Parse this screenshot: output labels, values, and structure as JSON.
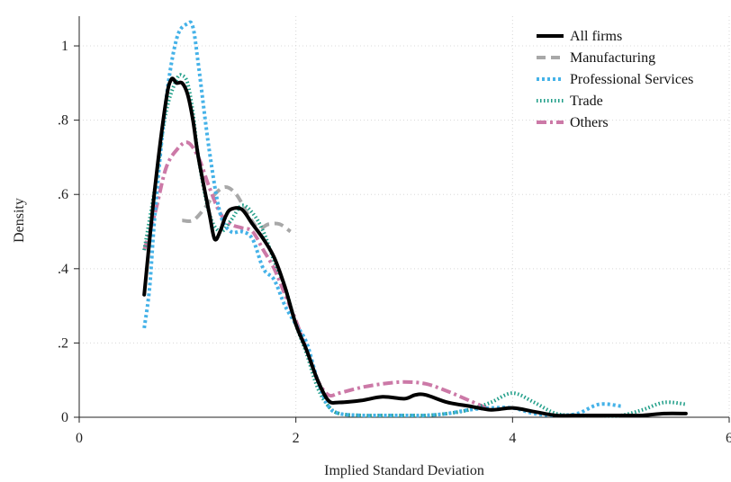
{
  "chart_data": {
    "type": "line",
    "xlabel": "Implied Standard Deviation",
    "ylabel": "Density",
    "xlim": [
      0,
      6
    ],
    "ylim": [
      0,
      1.08
    ],
    "x_ticks": [
      {
        "value": 0,
        "label": "0"
      },
      {
        "value": 2,
        "label": "2"
      },
      {
        "value": 4,
        "label": "4"
      },
      {
        "value": 6,
        "label": "6"
      }
    ],
    "y_ticks": [
      {
        "value": 0,
        "label": "0"
      },
      {
        "value": 0.2,
        "label": ".2"
      },
      {
        "value": 0.4,
        "label": ".4"
      },
      {
        "value": 0.6,
        "label": ".6"
      },
      {
        "value": 0.8,
        "label": ".8"
      },
      {
        "value": 1,
        "label": "1"
      }
    ],
    "grid": true,
    "legend_position": "top-right",
    "series": [
      {
        "name": "All firms",
        "color": "#000000",
        "style": "solid",
        "x": [
          0.6,
          0.7,
          0.8,
          0.85,
          0.9,
          0.95,
          1.0,
          1.05,
          1.1,
          1.2,
          1.25,
          1.3,
          1.35,
          1.4,
          1.5,
          1.6,
          1.7,
          1.8,
          1.9,
          2.0,
          2.1,
          2.2,
          2.3,
          2.4,
          2.6,
          2.8,
          3.0,
          3.1,
          3.2,
          3.4,
          3.6,
          3.8,
          4.0,
          4.2,
          4.4,
          4.6,
          4.8,
          5.0,
          5.2,
          5.4,
          5.6
        ],
        "y": [
          0.33,
          0.62,
          0.85,
          0.91,
          0.9,
          0.9,
          0.87,
          0.8,
          0.7,
          0.55,
          0.48,
          0.5,
          0.54,
          0.56,
          0.56,
          0.52,
          0.48,
          0.43,
          0.35,
          0.25,
          0.18,
          0.1,
          0.045,
          0.04,
          0.045,
          0.055,
          0.05,
          0.06,
          0.06,
          0.04,
          0.03,
          0.02,
          0.025,
          0.015,
          0.005,
          0.005,
          0.005,
          0.005,
          0.005,
          0.01,
          0.01
        ]
      },
      {
        "name": "Manufacturing",
        "color": "#a8a8a8",
        "style": "dashed",
        "x": [
          0.95,
          1.05,
          1.15,
          1.25,
          1.35,
          1.45,
          1.55,
          1.65,
          1.75,
          1.85,
          1.95
        ],
        "y": [
          0.53,
          0.53,
          0.56,
          0.6,
          0.62,
          0.6,
          0.55,
          0.51,
          0.52,
          0.52,
          0.5
        ]
      },
      {
        "name": "Professional Services",
        "color": "#45b2e8",
        "style": "dotted",
        "x": [
          0.6,
          0.65,
          0.7,
          0.8,
          0.9,
          1.0,
          1.05,
          1.1,
          1.2,
          1.3,
          1.4,
          1.5,
          1.6,
          1.7,
          1.8,
          1.9,
          2.0,
          2.1,
          2.2,
          2.3,
          2.4,
          2.6,
          2.8,
          3.0,
          3.2,
          3.4,
          3.6,
          3.8,
          4.0,
          4.2,
          4.4,
          4.6,
          4.8,
          5.0
        ],
        "y": [
          0.24,
          0.35,
          0.55,
          0.85,
          1.02,
          1.06,
          1.05,
          0.95,
          0.72,
          0.55,
          0.5,
          0.5,
          0.48,
          0.4,
          0.37,
          0.3,
          0.25,
          0.2,
          0.1,
          0.03,
          0.01,
          0.005,
          0.005,
          0.005,
          0.005,
          0.01,
          0.02,
          0.025,
          0.025,
          0.01,
          0.005,
          0.01,
          0.035,
          0.03
        ]
      },
      {
        "name": "Trade",
        "color": "#1f9e88",
        "style": "dotted-fine",
        "x": [
          0.6,
          0.7,
          0.8,
          0.9,
          0.95,
          1.0,
          1.05,
          1.1,
          1.2,
          1.3,
          1.4,
          1.5,
          1.6,
          1.7,
          1.8,
          1.9,
          2.0,
          2.1,
          2.2,
          2.3,
          2.4,
          2.6,
          2.8,
          3.0,
          3.2,
          3.4,
          3.6,
          3.8,
          4.0,
          4.2,
          4.4,
          4.6,
          4.8,
          5.0,
          5.2,
          5.4,
          5.6
        ],
        "y": [
          0.45,
          0.62,
          0.82,
          0.91,
          0.92,
          0.9,
          0.82,
          0.7,
          0.55,
          0.5,
          0.53,
          0.57,
          0.55,
          0.5,
          0.42,
          0.35,
          0.25,
          0.17,
          0.08,
          0.03,
          0.01,
          0.005,
          0.005,
          0.005,
          0.005,
          0.01,
          0.02,
          0.04,
          0.065,
          0.04,
          0.01,
          0.005,
          0.005,
          0.005,
          0.02,
          0.04,
          0.035
        ]
      },
      {
        "name": "Others",
        "color": "#cc79a7",
        "style": "dash-dot",
        "x": [
          0.6,
          0.7,
          0.8,
          0.9,
          1.0,
          1.1,
          1.2,
          1.3,
          1.4,
          1.5,
          1.6,
          1.7,
          1.8,
          1.9,
          2.0,
          2.1,
          2.2,
          2.3,
          2.4,
          2.6,
          2.8,
          3.0,
          3.2,
          3.4,
          3.6,
          3.8
        ],
        "y": [
          0.45,
          0.55,
          0.67,
          0.72,
          0.74,
          0.7,
          0.62,
          0.55,
          0.52,
          0.51,
          0.5,
          0.45,
          0.4,
          0.33,
          0.26,
          0.18,
          0.1,
          0.06,
          0.065,
          0.08,
          0.09,
          0.095,
          0.09,
          0.07,
          0.045,
          0.02
        ]
      }
    ]
  }
}
